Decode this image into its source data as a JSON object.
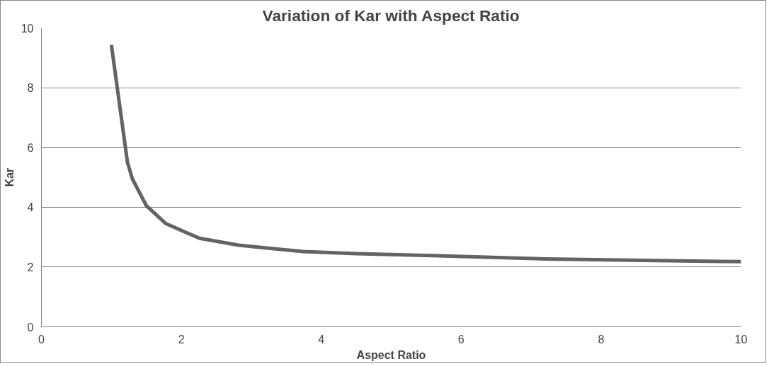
{
  "chart_data": {
    "type": "line",
    "title": "Variation of Kar with Aspect Ratio",
    "xlabel": "Aspect Ratio",
    "ylabel": "Kar",
    "series": [
      {
        "color": "#636363",
        "x": [
          1,
          1.23,
          1.3,
          1.5,
          1.78,
          2.26,
          2.82,
          3.37,
          3.74,
          4.6,
          5.59,
          7.2,
          8.6,
          10
        ],
        "values": [
          9.43,
          5.5,
          4.95,
          4.05,
          3.45,
          2.96,
          2.73,
          2.6,
          2.52,
          2.44,
          2.38,
          2.27,
          2.22,
          2.18
        ]
      }
    ],
    "xlim": [
      0,
      10
    ],
    "xticks": [
      0,
      2,
      4,
      6,
      8,
      10
    ],
    "ylim": [
      0,
      10
    ],
    "yticks": [
      0,
      2,
      4,
      6,
      8,
      10
    ],
    "grid": "y",
    "marker": "none",
    "line_style": "solid"
  }
}
